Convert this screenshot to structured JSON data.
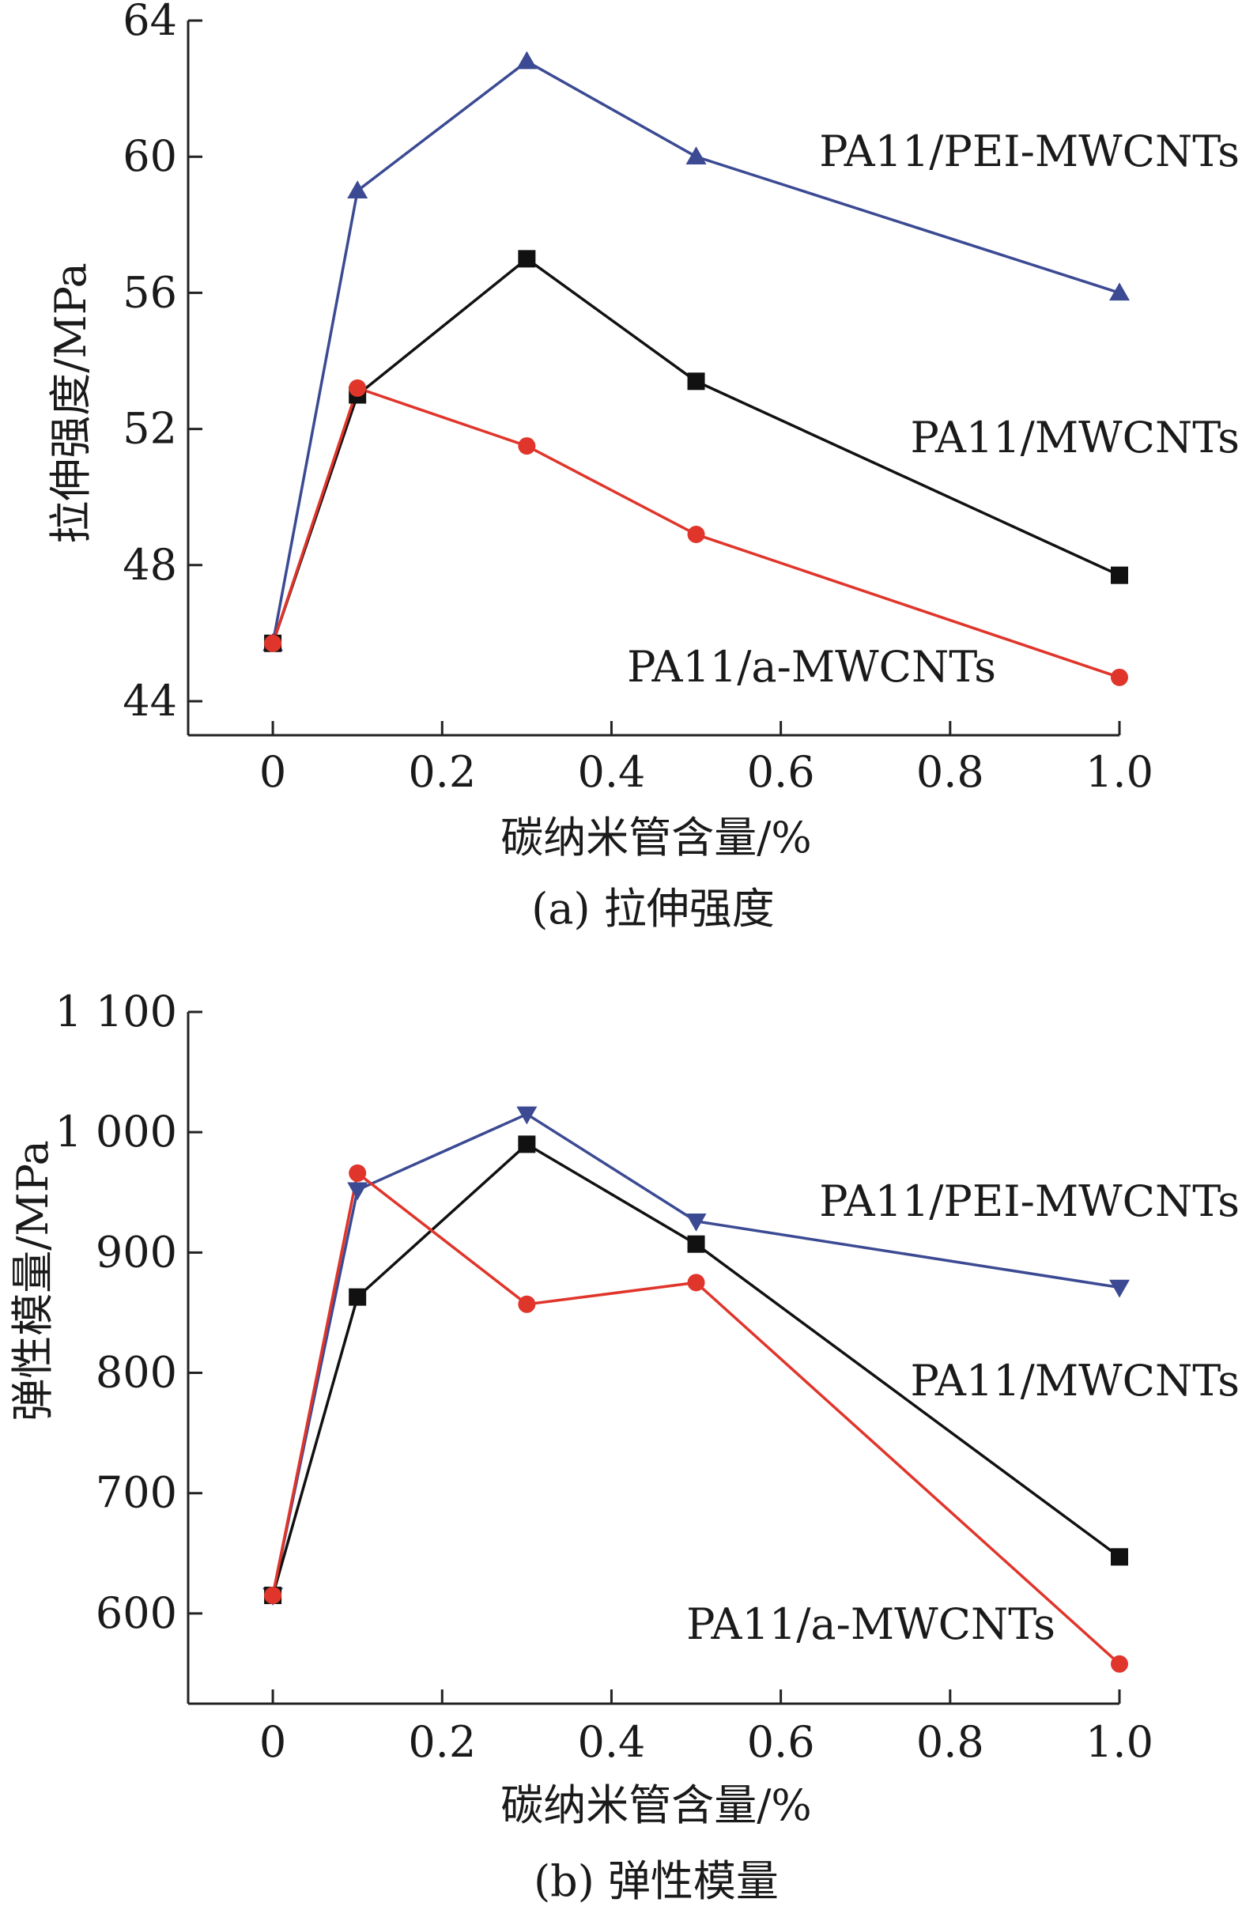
{
  "chart_data": [
    {
      "type": "line",
      "caption": "(a) 拉伸强度",
      "xlabel": "碳纳米管含量/%",
      "ylabel": "拉伸强度/MPa",
      "x": [
        0,
        0.1,
        0.3,
        0.5,
        1.0
      ],
      "xlim": [
        -0.1,
        1.0
      ],
      "xticks": [
        0,
        0.2,
        0.4,
        0.6,
        0.8,
        1.0
      ],
      "xtick_labels": [
        "0",
        "0.2",
        "0.4",
        "0.6",
        "0.8",
        "1.0"
      ],
      "ylim": [
        43,
        64
      ],
      "yticks": [
        44,
        48,
        52,
        56,
        60,
        64
      ],
      "ytick_labels": [
        "44",
        "48",
        "52",
        "56",
        "60",
        "64"
      ],
      "grid": false,
      "series": [
        {
          "name": "PA11/PEI-MWCNTs",
          "values": [
            45.7,
            59.0,
            62.8,
            60.0,
            56.0
          ],
          "color": "#3b4a93",
          "marker": "triangle-up"
        },
        {
          "name": "PA11/MWCNTs",
          "values": [
            45.7,
            53.0,
            57.0,
            53.4,
            47.7
          ],
          "color": "#111111",
          "marker": "square"
        },
        {
          "name": "PA11/a-MWCNTs",
          "values": [
            45.7,
            53.2,
            51.5,
            48.9,
            44.7
          ],
          "color": "#e0352b",
          "marker": "circle"
        }
      ]
    },
    {
      "type": "line",
      "caption": "(b) 弹性模量",
      "xlabel": "碳纳米管含量/%",
      "ylabel": "弹性模量/MPa",
      "x": [
        0,
        0.1,
        0.3,
        0.5,
        1.0
      ],
      "xlim": [
        -0.1,
        1.0
      ],
      "xticks": [
        0,
        0.2,
        0.4,
        0.6,
        0.8,
        1.0
      ],
      "xtick_labels": [
        "0",
        "0.2",
        "0.4",
        "0.6",
        "0.8",
        "1.0"
      ],
      "ylim": [
        525,
        1100
      ],
      "yticks": [
        600,
        700,
        800,
        900,
        1000,
        1100
      ],
      "ytick_labels": [
        "600",
        "700",
        "800",
        "900",
        "1 000",
        "1 100"
      ],
      "grid": false,
      "series": [
        {
          "name": "PA11/PEI-MWCNTs",
          "values": [
            615,
            952,
            1015,
            926,
            871
          ],
          "color": "#3b4a93",
          "marker": "triangle-down"
        },
        {
          "name": "PA11/MWCNTs",
          "values": [
            615,
            863,
            990,
            907,
            647
          ],
          "color": "#111111",
          "marker": "square"
        },
        {
          "name": "PA11/a-MWCNTs",
          "values": [
            615,
            966,
            857,
            875,
            558
          ],
          "color": "#e0352b",
          "marker": "circle"
        }
      ]
    }
  ]
}
